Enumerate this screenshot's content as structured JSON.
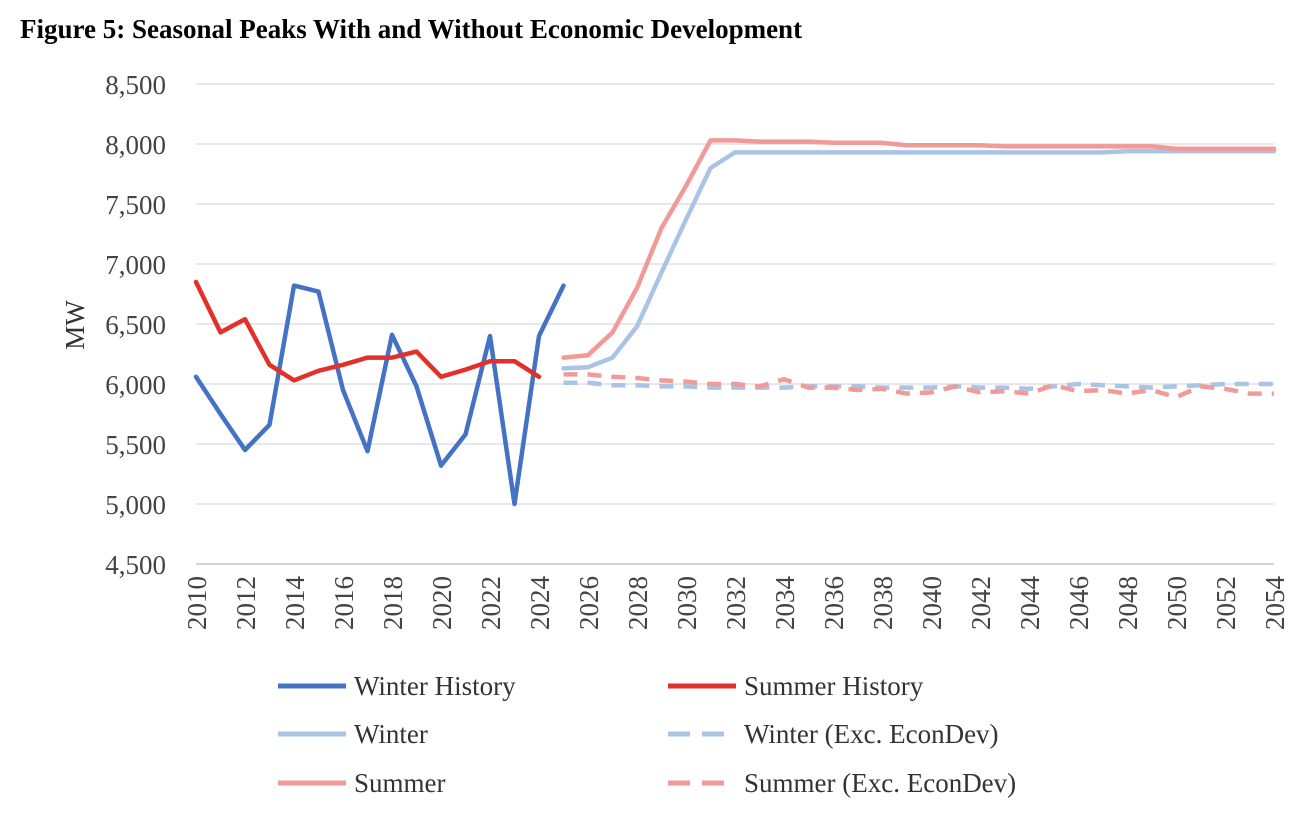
{
  "chart_data": {
    "type": "line",
    "title": "Figure 5: Seasonal Peaks With and Without Economic Development",
    "xlabel": "",
    "ylabel": "MW",
    "ylim": [
      4500,
      8500
    ],
    "yticks": [
      4500,
      5000,
      5500,
      6000,
      6500,
      7000,
      7500,
      8000,
      8500
    ],
    "ytick_labels": [
      "4,500",
      "5,000",
      "5,500",
      "6,000",
      "6,500",
      "7,000",
      "7,500",
      "8,000",
      "8,500"
    ],
    "xlim": [
      2010,
      2054
    ],
    "xticks": [
      2010,
      2012,
      2014,
      2016,
      2018,
      2020,
      2022,
      2024,
      2026,
      2028,
      2030,
      2032,
      2034,
      2036,
      2038,
      2040,
      2042,
      2044,
      2046,
      2048,
      2050,
      2052,
      2054
    ],
    "xtick_labels": [
      "2010",
      "2012",
      "2014",
      "2016",
      "2018",
      "2020",
      "2022",
      "2024",
      "2026",
      "2028",
      "2030",
      "2032",
      "2034",
      "2036",
      "2038",
      "2040",
      "2042",
      "2044",
      "2046",
      "2048",
      "2050",
      "2052",
      "2054"
    ],
    "grid": true,
    "legend_position": "bottom",
    "series": [
      {
        "name": "Winter History",
        "color": "#4472C4",
        "dash": "solid",
        "x": [
          2010,
          2011,
          2012,
          2013,
          2014,
          2015,
          2016,
          2017,
          2018,
          2019,
          2020,
          2021,
          2022,
          2023,
          2024,
          2025
        ],
        "values": [
          6060,
          5750,
          5450,
          5660,
          6820,
          6770,
          5950,
          5440,
          6410,
          5980,
          5320,
          5580,
          6400,
          5000,
          6400,
          6820
        ]
      },
      {
        "name": "Summer History",
        "color": "#E1312A",
        "dash": "solid",
        "x": [
          2010,
          2011,
          2012,
          2013,
          2014,
          2015,
          2016,
          2017,
          2018,
          2019,
          2020,
          2021,
          2022,
          2023,
          2024
        ],
        "values": [
          6850,
          6430,
          6540,
          6160,
          6030,
          6110,
          6160,
          6220,
          6220,
          6270,
          6060,
          6120,
          6190,
          6190,
          6060
        ]
      },
      {
        "name": "Winter",
        "color": "#A9C4E6",
        "dash": "solid",
        "x": [
          2025,
          2026,
          2027,
          2028,
          2029,
          2030,
          2031,
          2032,
          2033,
          2034,
          2035,
          2036,
          2037,
          2038,
          2039,
          2040,
          2041,
          2042,
          2043,
          2044,
          2045,
          2046,
          2047,
          2048,
          2049,
          2050,
          2051,
          2052,
          2053,
          2054
        ],
        "values": [
          6130,
          6140,
          6220,
          6480,
          6930,
          7370,
          7800,
          7930,
          7930,
          7930,
          7930,
          7930,
          7930,
          7930,
          7930,
          7930,
          7930,
          7930,
          7930,
          7930,
          7930,
          7930,
          7930,
          7940,
          7940,
          7940,
          7940,
          7940,
          7940,
          7940
        ]
      },
      {
        "name": "Winter (Exc. EconDev)",
        "color": "#A9C4E6",
        "dash": "dashed",
        "x": [
          2025,
          2026,
          2027,
          2028,
          2029,
          2030,
          2031,
          2032,
          2033,
          2034,
          2035,
          2036,
          2037,
          2038,
          2039,
          2040,
          2041,
          2042,
          2043,
          2044,
          2045,
          2046,
          2047,
          2048,
          2049,
          2050,
          2051,
          2052,
          2053,
          2054
        ],
        "values": [
          6010,
          6010,
          5990,
          5990,
          5980,
          5980,
          5970,
          5970,
          5970,
          5970,
          5980,
          5980,
          5980,
          5970,
          5970,
          5970,
          5980,
          5970,
          5970,
          5960,
          5980,
          6000,
          5990,
          5980,
          5970,
          5980,
          5990,
          6000,
          6000,
          6000
        ]
      },
      {
        "name": "Summer",
        "color": "#F19A98",
        "dash": "solid",
        "x": [
          2025,
          2026,
          2027,
          2028,
          2029,
          2030,
          2031,
          2032,
          2033,
          2034,
          2035,
          2036,
          2037,
          2038,
          2039,
          2040,
          2041,
          2042,
          2043,
          2044,
          2045,
          2046,
          2047,
          2048,
          2049,
          2050,
          2051,
          2052,
          2053,
          2054
        ],
        "values": [
          6220,
          6240,
          6430,
          6800,
          7300,
          7650,
          8030,
          8030,
          8020,
          8020,
          8020,
          8010,
          8010,
          8010,
          7990,
          7990,
          7990,
          7990,
          7980,
          7980,
          7980,
          7980,
          7980,
          7980,
          7980,
          7960,
          7960,
          7960,
          7960,
          7960
        ]
      },
      {
        "name": "Summer (Exc. EconDev)",
        "color": "#F19A98",
        "dash": "dashed",
        "x": [
          2025,
          2026,
          2027,
          2028,
          2029,
          2030,
          2031,
          2032,
          2033,
          2034,
          2035,
          2036,
          2037,
          2038,
          2039,
          2040,
          2041,
          2042,
          2043,
          2044,
          2045,
          2046,
          2047,
          2048,
          2049,
          2050,
          2051,
          2052,
          2053,
          2054
        ],
        "values": [
          6080,
          6080,
          6060,
          6050,
          6030,
          6020,
          6000,
          6000,
          5980,
          6040,
          5970,
          5970,
          5950,
          5960,
          5920,
          5930,
          5980,
          5930,
          5940,
          5920,
          5990,
          5940,
          5950,
          5920,
          5950,
          5890,
          5980,
          5960,
          5920,
          5920
        ]
      }
    ]
  }
}
